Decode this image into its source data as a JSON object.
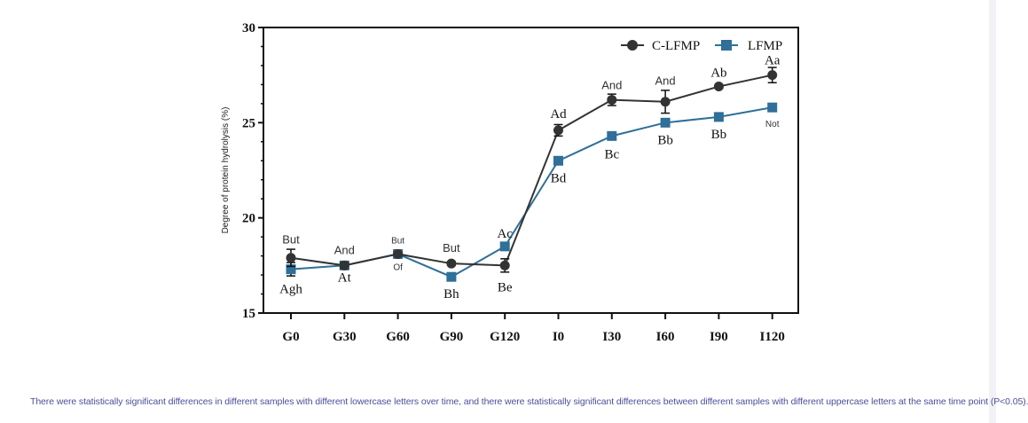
{
  "chart_data": {
    "type": "line",
    "categories": [
      "G0",
      "G30",
      "G60",
      "G90",
      "G120",
      "I0",
      "I30",
      "I60",
      "I90",
      "I120"
    ],
    "ylabel": "Degree of protein hydrolysis (%)",
    "ylim": [
      15,
      30
    ],
    "yticks": [
      15,
      20,
      25,
      30
    ],
    "legend_position": "top-right",
    "series": [
      {
        "name": "C-LFMP",
        "color": "#333333",
        "marker": "circle",
        "values": [
          17.9,
          17.5,
          18.1,
          17.6,
          17.5,
          24.6,
          26.2,
          26.1,
          26.9,
          27.5
        ],
        "errors": [
          0.45,
          0.15,
          0.1,
          0.1,
          0.35,
          0.3,
          0.3,
          0.6,
          0.1,
          0.4
        ],
        "labels": [
          "But",
          "And",
          "But",
          "But",
          "Be",
          "Ad",
          "And",
          "And",
          "Ab",
          "Aa"
        ]
      },
      {
        "name": "LFMP",
        "color": "#2f6f99",
        "marker": "square",
        "values": [
          17.3,
          17.5,
          18.1,
          16.9,
          18.5,
          23.0,
          24.3,
          25.0,
          25.3,
          25.8
        ],
        "errors": [
          0.35,
          0.1,
          0.1,
          0.1,
          0.15,
          0.1,
          0.1,
          0.1,
          0.1,
          0.1
        ],
        "labels": [
          "Agh",
          "At",
          "Of",
          "Bh",
          "Ac",
          "Bd",
          "Bc",
          "Bb",
          "Bb",
          "Not"
        ]
      }
    ]
  },
  "caption": "There were statistically significant differences in different samples with different lowercase letters over time, and there were statistically significant differences between different samples with different uppercase letters at the same time point (P<0.05)."
}
